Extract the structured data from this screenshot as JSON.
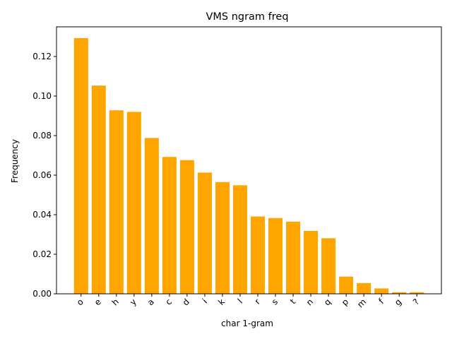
{
  "chart_data": {
    "type": "bar",
    "title": "VMS ngram freq",
    "xlabel": "char 1-gram",
    "ylabel": "Frequency",
    "categories": [
      "o",
      "e",
      "h",
      "y",
      "a",
      "c",
      "d",
      "i",
      "k",
      "l",
      "r",
      "s",
      "t",
      "n",
      "q",
      "p",
      "m",
      "f",
      "g",
      "?"
    ],
    "values": [
      0.1293,
      0.1053,
      0.0928,
      0.092,
      0.0788,
      0.0692,
      0.0676,
      0.0613,
      0.0565,
      0.0549,
      0.0391,
      0.0383,
      0.0365,
      0.0318,
      0.0281,
      0.0087,
      0.0054,
      0.0027,
      0.0008,
      0.0008
    ],
    "ylim": [
      0,
      0.135
    ],
    "yticks": [
      0.0,
      0.02,
      0.04,
      0.06,
      0.08,
      0.1,
      0.12
    ],
    "ytick_labels": [
      "0.00",
      "0.02",
      "0.04",
      "0.06",
      "0.08",
      "0.10",
      "0.12"
    ],
    "bar_color": "#ffa500",
    "grid": false,
    "legend": "none"
  }
}
